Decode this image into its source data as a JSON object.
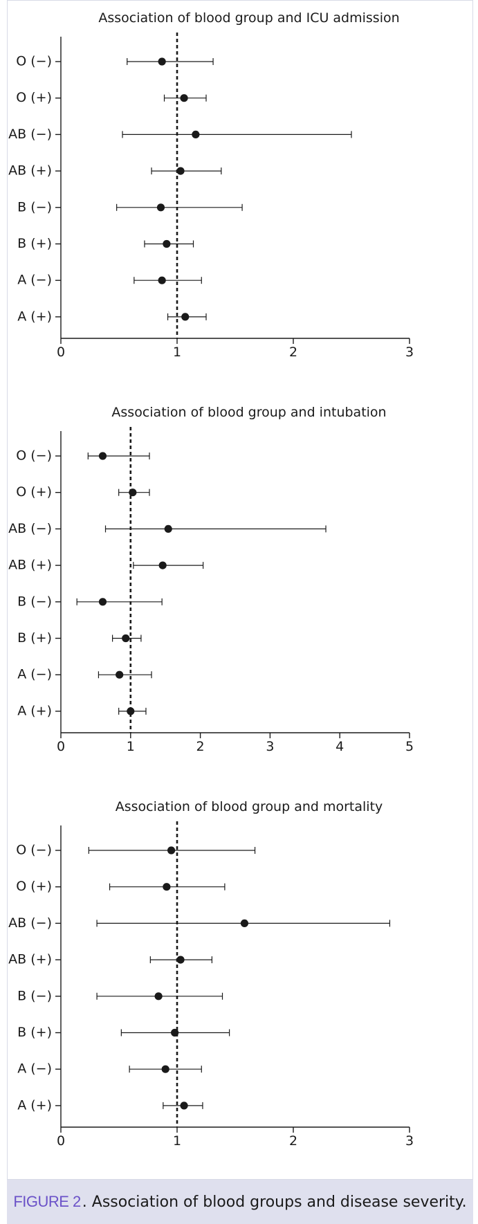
{
  "caption": {
    "label": "FIGURE 2",
    "text": ". Association of blood groups and disease severity.",
    "label_color": "#6b52c8",
    "background": "#dfe0ee"
  },
  "chart_data": [
    {
      "type": "forest",
      "title": "Association of blood group and ICU admission",
      "categories": [
        "O (−)",
        "O (+)",
        "AB (−)",
        "AB (+)",
        "B (−)",
        "B (+)",
        "A (−)",
        "A (+)"
      ],
      "estimates": [
        0.87,
        1.06,
        1.16,
        1.03,
        0.86,
        0.91,
        0.87,
        1.07
      ],
      "ci_lower": [
        0.57,
        0.89,
        0.53,
        0.78,
        0.48,
        0.72,
        0.63,
        0.92
      ],
      "ci_upper": [
        1.31,
        1.25,
        2.5,
        1.38,
        1.56,
        1.14,
        1.21,
        1.25
      ],
      "xlim": [
        0,
        3
      ],
      "xticks": [
        0,
        1,
        2,
        3
      ],
      "reference_line": 1
    },
    {
      "type": "forest",
      "title": "Association of blood group and intubation",
      "categories": [
        "O (−)",
        "O (+)",
        "AB (−)",
        "AB (+)",
        "B (−)",
        "B (+)",
        "A (−)",
        "A (+)"
      ],
      "estimates": [
        0.6,
        1.03,
        1.54,
        1.46,
        0.6,
        0.93,
        0.84,
        1.0
      ],
      "ci_lower": [
        0.39,
        0.83,
        0.64,
        1.04,
        0.23,
        0.74,
        0.54,
        0.83
      ],
      "ci_upper": [
        1.27,
        1.27,
        3.8,
        2.04,
        1.45,
        1.15,
        1.3,
        1.22
      ],
      "xlim": [
        0,
        5
      ],
      "xticks": [
        0,
        1,
        2,
        3,
        4,
        5
      ],
      "reference_line": 1
    },
    {
      "type": "forest",
      "title": "Association of blood group and mortality",
      "categories": [
        "O (−)",
        "O (+)",
        "AB (−)",
        "AB (+)",
        "B (−)",
        "B (+)",
        "A (−)",
        "A (+)"
      ],
      "estimates": [
        0.95,
        0.91,
        1.58,
        1.03,
        0.84,
        0.98,
        0.9,
        1.06
      ],
      "ci_lower": [
        0.24,
        0.42,
        0.31,
        0.77,
        0.31,
        0.52,
        0.59,
        0.88
      ],
      "ci_upper": [
        1.67,
        1.41,
        2.83,
        1.3,
        1.39,
        1.45,
        1.21,
        1.22
      ],
      "xlim": [
        0,
        3
      ],
      "xticks": [
        0,
        1,
        2,
        3
      ],
      "reference_line": 1
    }
  ]
}
